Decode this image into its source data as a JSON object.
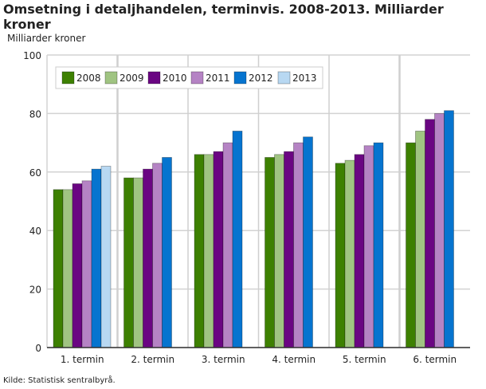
{
  "chart_data": {
    "type": "bar",
    "title": "Omsetning i detaljhandelen, terminvis. 2008-2013. Milliarder kroner",
    "ylabel": "Milliarder kroner",
    "xlabel": "",
    "ylim": [
      0,
      100
    ],
    "yticks": [
      0,
      20,
      40,
      60,
      80,
      100
    ],
    "grid": true,
    "legend_placement": "top-left",
    "categories": [
      "1. termin",
      "2. termin",
      "3. termin",
      "4. termin",
      "5. termin",
      "6. termin"
    ],
    "series": [
      {
        "name": "2008",
        "color": "#3d8001",
        "values": [
          54,
          58,
          66,
          65,
          63,
          70
        ]
      },
      {
        "name": "2009",
        "color": "#a0c482",
        "values": [
          54,
          58,
          66,
          66,
          64,
          74
        ]
      },
      {
        "name": "2010",
        "color": "#6a0582",
        "values": [
          56,
          61,
          67,
          67,
          66,
          78
        ]
      },
      {
        "name": "2011",
        "color": "#b583c4",
        "values": [
          57,
          63,
          70,
          70,
          69,
          80
        ]
      },
      {
        "name": "2012",
        "color": "#0674cf",
        "values": [
          61,
          65,
          74,
          72,
          70,
          81
        ]
      },
      {
        "name": "2013",
        "color": "#b8d8f2",
        "values": [
          62,
          null,
          null,
          null,
          null,
          null
        ]
      }
    ]
  },
  "source": "Kilde: Statistisk sentralbyrå."
}
